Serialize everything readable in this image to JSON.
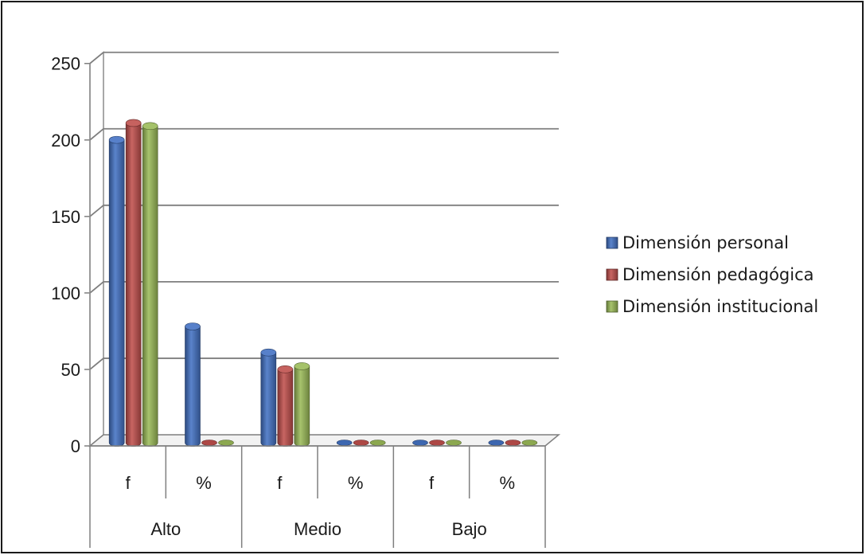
{
  "chart_data": {
    "type": "bar",
    "categories": [
      {
        "group": "Alto",
        "sub": "f"
      },
      {
        "group": "Alto",
        "sub": "%"
      },
      {
        "group": "Medio",
        "sub": "f"
      },
      {
        "group": "Medio",
        "sub": "%"
      },
      {
        "group": "Bajo",
        "sub": "f"
      },
      {
        "group": "Bajo",
        "sub": "%"
      }
    ],
    "groups": [
      "Alto",
      "Medio",
      "Bajo"
    ],
    "sub_labels": [
      "f",
      "%",
      "f",
      "%",
      "f",
      "%"
    ],
    "series": [
      {
        "name": "Dimensión personal",
        "color": "#4472c4",
        "values": [
          198,
          76,
          59,
          0,
          0,
          0
        ]
      },
      {
        "name": "Dimensión pedagógica",
        "color": "#c0504d",
        "values": [
          209,
          0,
          48,
          0,
          0,
          0
        ]
      },
      {
        "name": "Dimensión institucional",
        "color": "#9bbb59",
        "values": [
          207,
          0,
          50,
          0,
          0,
          0
        ]
      }
    ],
    "ylim": [
      0,
      250
    ],
    "yticks": [
      0,
      50,
      100,
      150,
      200,
      250
    ],
    "grid": true,
    "legend_position": "right",
    "style": "3d-cylinder"
  }
}
